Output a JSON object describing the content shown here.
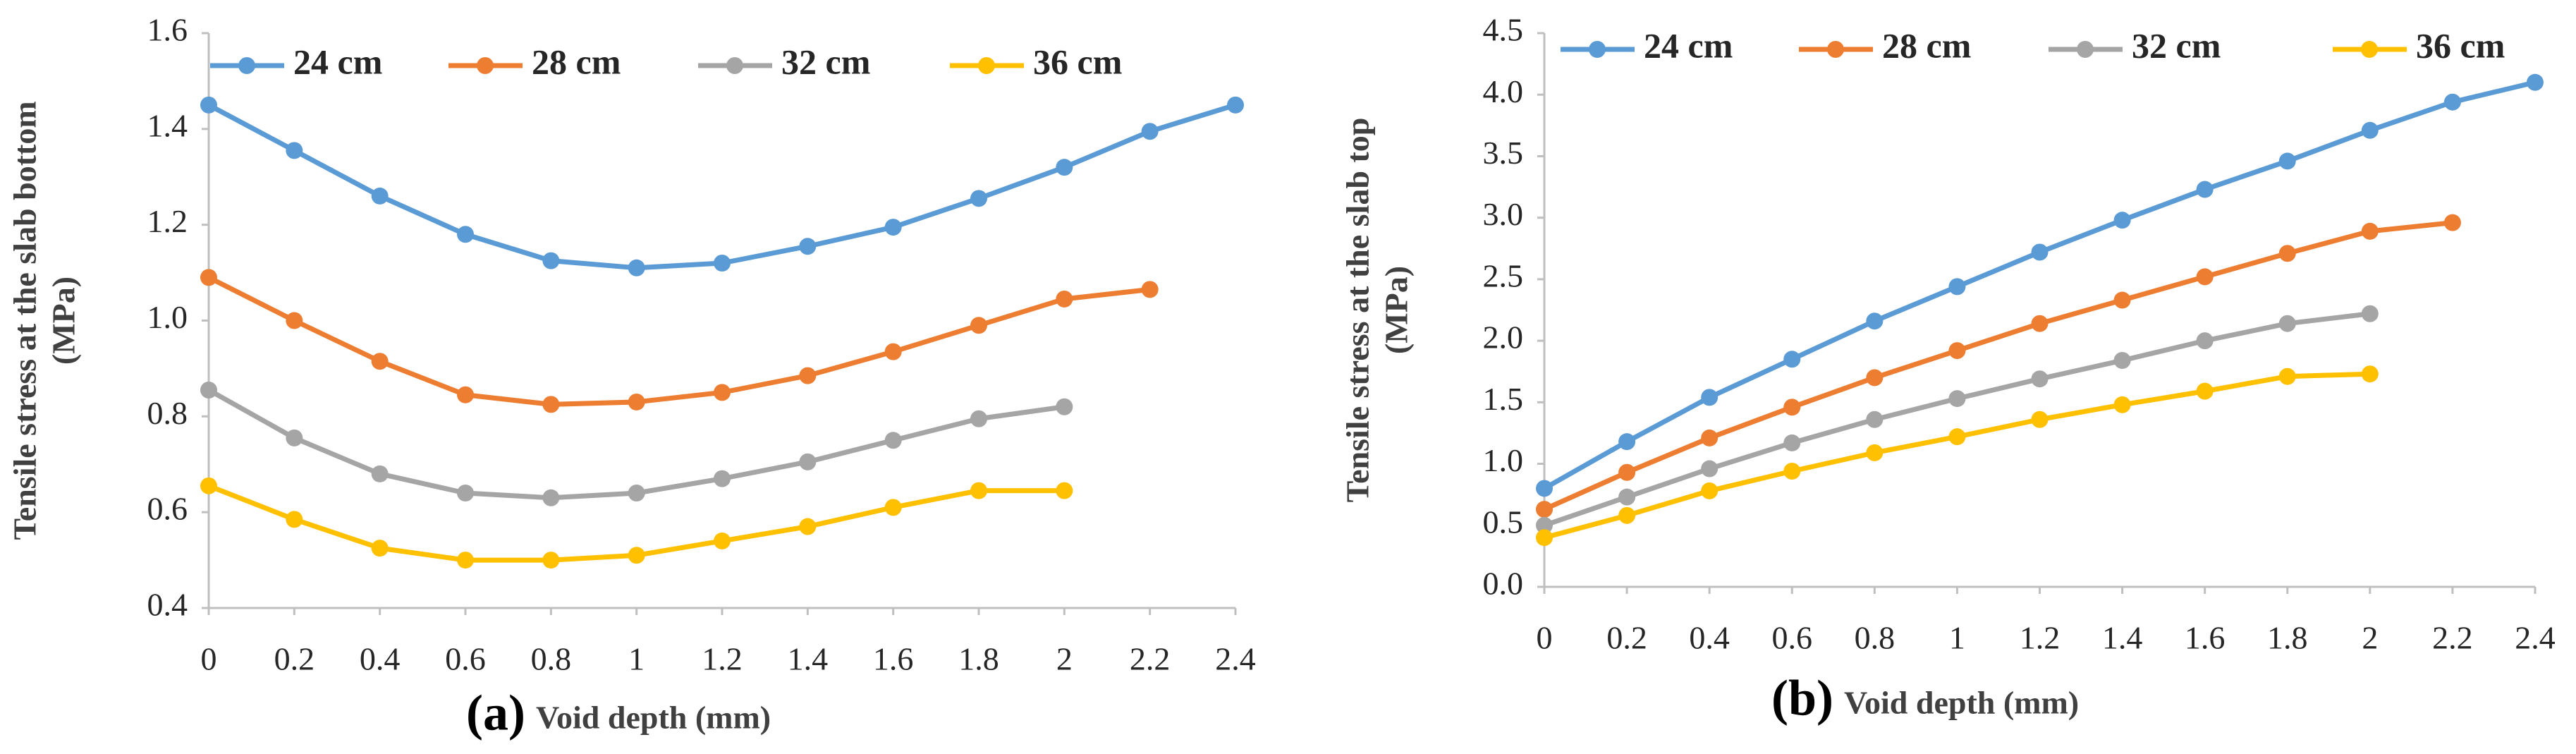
{
  "chart_data": [
    {
      "type": "line",
      "label": "(a)",
      "xlabel": "Void depth (mm)",
      "ylabel": [
        "Tensile stress at the slab bottom",
        "(MPa)"
      ],
      "x": [
        0,
        0.2,
        0.4,
        0.6,
        0.8,
        1,
        1.2,
        1.4,
        1.6,
        1.8,
        2,
        2.2,
        2.4
      ],
      "xlim": [
        0,
        2.4
      ],
      "xticks": [
        0,
        0.2,
        0.4,
        0.6,
        0.8,
        1,
        1.2,
        1.4,
        1.6,
        1.8,
        2,
        2.2,
        2.4
      ],
      "ylim": [
        0.4,
        1.6
      ],
      "yticks": [
        0.4,
        0.6,
        0.8,
        {
          "value": 1,
          "label": "1.0"
        },
        1.2,
        1.4,
        1.6
      ],
      "grid": false,
      "legend": "top",
      "series": [
        {
          "name": "24 cm",
          "color": "#5b9bd5",
          "values": [
            1.45,
            1.355,
            1.26,
            1.18,
            1.125,
            1.11,
            1.12,
            1.155,
            1.195,
            1.255,
            1.32,
            1.395,
            1.45
          ]
        },
        {
          "name": "28 cm",
          "color": "#ed7d31",
          "values": [
            1.09,
            1.0,
            0.915,
            0.845,
            0.825,
            0.83,
            0.85,
            0.885,
            0.935,
            0.99,
            1.045,
            1.065,
            null
          ]
        },
        {
          "name": "32 cm",
          "color": "#a5a5a5",
          "values": [
            0.855,
            0.755,
            0.68,
            0.64,
            0.63,
            0.64,
            0.67,
            0.705,
            0.75,
            0.795,
            0.82,
            null,
            null
          ]
        },
        {
          "name": "36 cm",
          "color": "#ffc000",
          "values": [
            0.655,
            0.585,
            0.525,
            0.5,
            0.5,
            0.51,
            0.54,
            0.57,
            0.61,
            0.645,
            0.645,
            null,
            null
          ]
        }
      ]
    },
    {
      "type": "line",
      "label": "(b)",
      "xlabel": "Void depth (mm)",
      "ylabel": [
        "Tensile stress at the slab top",
        "(MPa)"
      ],
      "x": [
        0,
        0.2,
        0.4,
        0.6,
        0.8,
        1,
        1.2,
        1.4,
        1.6,
        1.8,
        2,
        2.2,
        2.4
      ],
      "xlim": [
        0,
        2.4
      ],
      "xticks": [
        0,
        0.2,
        0.4,
        0.6,
        0.8,
        1,
        1.2,
        1.4,
        1.6,
        1.8,
        2,
        2.2,
        2.4
      ],
      "ylim": [
        0,
        4.5
      ],
      "yticks": [
        {
          "value": 0,
          "label": "0.0"
        },
        0.5,
        {
          "value": 1,
          "label": "1.0"
        },
        1.5,
        {
          "value": 2,
          "label": "2.0"
        },
        2.5,
        {
          "value": 3,
          "label": "3.0"
        },
        3.5,
        {
          "value": 4,
          "label": "4.0"
        },
        4.5
      ],
      "grid": false,
      "legend": "top",
      "series": [
        {
          "name": "24 cm",
          "color": "#5b9bd5",
          "values": [
            0.8,
            1.18,
            1.54,
            1.85,
            2.16,
            2.44,
            2.72,
            2.98,
            3.23,
            3.46,
            3.71,
            3.94,
            4.1
          ]
        },
        {
          "name": "28 cm",
          "color": "#ed7d31",
          "values": [
            0.63,
            0.93,
            1.21,
            1.46,
            1.7,
            1.92,
            2.14,
            2.33,
            2.52,
            2.71,
            2.89,
            2.96,
            null
          ]
        },
        {
          "name": "32 cm",
          "color": "#a5a5a5",
          "values": [
            0.5,
            0.73,
            0.96,
            1.17,
            1.36,
            1.53,
            1.69,
            1.84,
            2.0,
            2.14,
            2.22,
            null,
            null
          ]
        },
        {
          "name": "36 cm",
          "color": "#ffc000",
          "values": [
            0.4,
            0.58,
            0.78,
            0.94,
            1.09,
            1.22,
            1.36,
            1.48,
            1.59,
            1.71,
            1.73,
            null,
            null
          ]
        }
      ]
    }
  ]
}
